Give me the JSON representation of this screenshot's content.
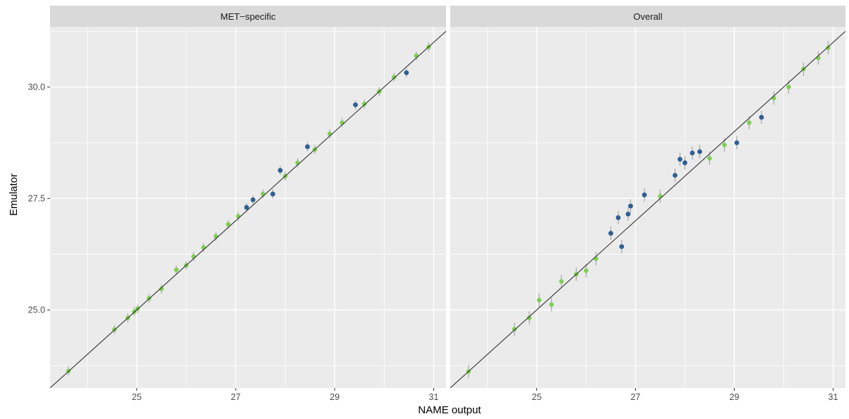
{
  "chart_data": {
    "type": "scatter",
    "xlabel": "NAME output",
    "ylabel": "Emulator",
    "xlim": [
      23.25,
      31.25
    ],
    "ylim": [
      23.25,
      31.35
    ],
    "x_ticks": [
      25,
      27,
      29,
      31
    ],
    "x_tick_labels": [
      "25",
      "27",
      "29",
      "31"
    ],
    "y_ticks": [
      25.0,
      27.5,
      30.0
    ],
    "y_tick_labels": [
      "25.0",
      "27.5",
      "30.0"
    ],
    "grid": true,
    "legend": "none",
    "reference_line": "y = x",
    "colors": {
      "inside_interval": "#7dcf50",
      "outside_interval": "#2f5e92",
      "error_bar": "#a6a6a6",
      "reference_line": "#333333",
      "panel_background": "#ebebeb",
      "grid": "#ffffff",
      "strip_background": "#d9d9d9"
    },
    "panels": [
      {
        "strip_label": "MET−specific",
        "points": [
          {
            "x": 23.62,
            "y": 23.63,
            "err": 0.1,
            "outside": false
          },
          {
            "x": 24.55,
            "y": 24.56,
            "err": 0.1,
            "outside": false
          },
          {
            "x": 24.82,
            "y": 24.82,
            "err": 0.1,
            "outside": false
          },
          {
            "x": 24.95,
            "y": 24.96,
            "err": 0.1,
            "outside": false
          },
          {
            "x": 25.02,
            "y": 25.03,
            "err": 0.1,
            "outside": false
          },
          {
            "x": 25.25,
            "y": 25.26,
            "err": 0.1,
            "outside": false
          },
          {
            "x": 25.5,
            "y": 25.47,
            "err": 0.1,
            "outside": false
          },
          {
            "x": 25.8,
            "y": 25.9,
            "err": 0.1,
            "outside": false
          },
          {
            "x": 26.0,
            "y": 26.0,
            "err": 0.1,
            "outside": false
          },
          {
            "x": 26.15,
            "y": 26.2,
            "err": 0.1,
            "outside": false
          },
          {
            "x": 26.35,
            "y": 26.4,
            "err": 0.1,
            "outside": false
          },
          {
            "x": 26.6,
            "y": 26.65,
            "err": 0.1,
            "outside": false
          },
          {
            "x": 26.85,
            "y": 26.92,
            "err": 0.1,
            "outside": false
          },
          {
            "x": 27.05,
            "y": 27.1,
            "err": 0.1,
            "outside": false
          },
          {
            "x": 27.22,
            "y": 27.3,
            "err": 0.1,
            "outside": true
          },
          {
            "x": 27.35,
            "y": 27.47,
            "err": 0.1,
            "outside": true
          },
          {
            "x": 27.55,
            "y": 27.6,
            "err": 0.1,
            "outside": false
          },
          {
            "x": 27.75,
            "y": 27.6,
            "err": 0.1,
            "outside": true
          },
          {
            "x": 27.9,
            "y": 28.13,
            "err": 0.1,
            "outside": true
          },
          {
            "x": 28.0,
            "y": 28.0,
            "err": 0.1,
            "outside": false
          },
          {
            "x": 28.25,
            "y": 28.3,
            "err": 0.1,
            "outside": false
          },
          {
            "x": 28.45,
            "y": 28.66,
            "err": 0.1,
            "outside": true
          },
          {
            "x": 28.6,
            "y": 28.6,
            "err": 0.1,
            "outside": false
          },
          {
            "x": 28.9,
            "y": 28.95,
            "err": 0.1,
            "outside": false
          },
          {
            "x": 29.15,
            "y": 29.2,
            "err": 0.1,
            "outside": false
          },
          {
            "x": 29.42,
            "y": 29.6,
            "err": 0.1,
            "outside": true
          },
          {
            "x": 29.6,
            "y": 29.62,
            "err": 0.1,
            "outside": false
          },
          {
            "x": 29.9,
            "y": 29.9,
            "err": 0.1,
            "outside": false
          },
          {
            "x": 30.2,
            "y": 30.22,
            "err": 0.1,
            "outside": false
          },
          {
            "x": 30.45,
            "y": 30.32,
            "err": 0.1,
            "outside": true
          },
          {
            "x": 30.65,
            "y": 30.7,
            "err": 0.1,
            "outside": false
          },
          {
            "x": 30.9,
            "y": 30.9,
            "err": 0.1,
            "outside": false
          }
        ]
      },
      {
        "strip_label": "Overall",
        "points": [
          {
            "x": 23.62,
            "y": 23.62,
            "err": 0.15,
            "outside": false
          },
          {
            "x": 24.55,
            "y": 24.57,
            "err": 0.15,
            "outside": false
          },
          {
            "x": 24.85,
            "y": 24.82,
            "err": 0.15,
            "outside": false
          },
          {
            "x": 25.05,
            "y": 25.22,
            "err": 0.15,
            "outside": false
          },
          {
            "x": 25.3,
            "y": 25.12,
            "err": 0.15,
            "outside": false
          },
          {
            "x": 25.5,
            "y": 25.64,
            "err": 0.15,
            "outside": false
          },
          {
            "x": 25.8,
            "y": 25.8,
            "err": 0.15,
            "outside": false
          },
          {
            "x": 26.0,
            "y": 25.88,
            "err": 0.15,
            "outside": false
          },
          {
            "x": 26.2,
            "y": 26.15,
            "err": 0.15,
            "outside": false
          },
          {
            "x": 26.5,
            "y": 26.72,
            "err": 0.15,
            "outside": true
          },
          {
            "x": 26.65,
            "y": 27.07,
            "err": 0.15,
            "outside": true
          },
          {
            "x": 26.72,
            "y": 26.42,
            "err": 0.15,
            "outside": true
          },
          {
            "x": 26.85,
            "y": 27.15,
            "err": 0.15,
            "outside": true
          },
          {
            "x": 26.9,
            "y": 27.33,
            "err": 0.15,
            "outside": true
          },
          {
            "x": 27.18,
            "y": 27.58,
            "err": 0.15,
            "outside": true
          },
          {
            "x": 27.5,
            "y": 27.55,
            "err": 0.15,
            "outside": false
          },
          {
            "x": 27.8,
            "y": 28.02,
            "err": 0.15,
            "outside": true
          },
          {
            "x": 27.9,
            "y": 28.38,
            "err": 0.15,
            "outside": true
          },
          {
            "x": 28.0,
            "y": 28.3,
            "err": 0.15,
            "outside": true
          },
          {
            "x": 28.15,
            "y": 28.52,
            "err": 0.15,
            "outside": true
          },
          {
            "x": 28.3,
            "y": 28.55,
            "err": 0.15,
            "outside": true
          },
          {
            "x": 28.5,
            "y": 28.4,
            "err": 0.15,
            "outside": false
          },
          {
            "x": 28.8,
            "y": 28.7,
            "err": 0.15,
            "outside": false
          },
          {
            "x": 29.05,
            "y": 28.75,
            "err": 0.15,
            "outside": true
          },
          {
            "x": 29.3,
            "y": 29.2,
            "err": 0.15,
            "outside": false
          },
          {
            "x": 29.55,
            "y": 29.32,
            "err": 0.15,
            "outside": true
          },
          {
            "x": 29.8,
            "y": 29.75,
            "err": 0.15,
            "outside": false
          },
          {
            "x": 30.1,
            "y": 30.0,
            "err": 0.15,
            "outside": false
          },
          {
            "x": 30.4,
            "y": 30.4,
            "err": 0.15,
            "outside": false
          },
          {
            "x": 30.7,
            "y": 30.65,
            "err": 0.15,
            "outside": false
          },
          {
            "x": 30.9,
            "y": 30.88,
            "err": 0.15,
            "outside": false
          }
        ]
      }
    ]
  }
}
